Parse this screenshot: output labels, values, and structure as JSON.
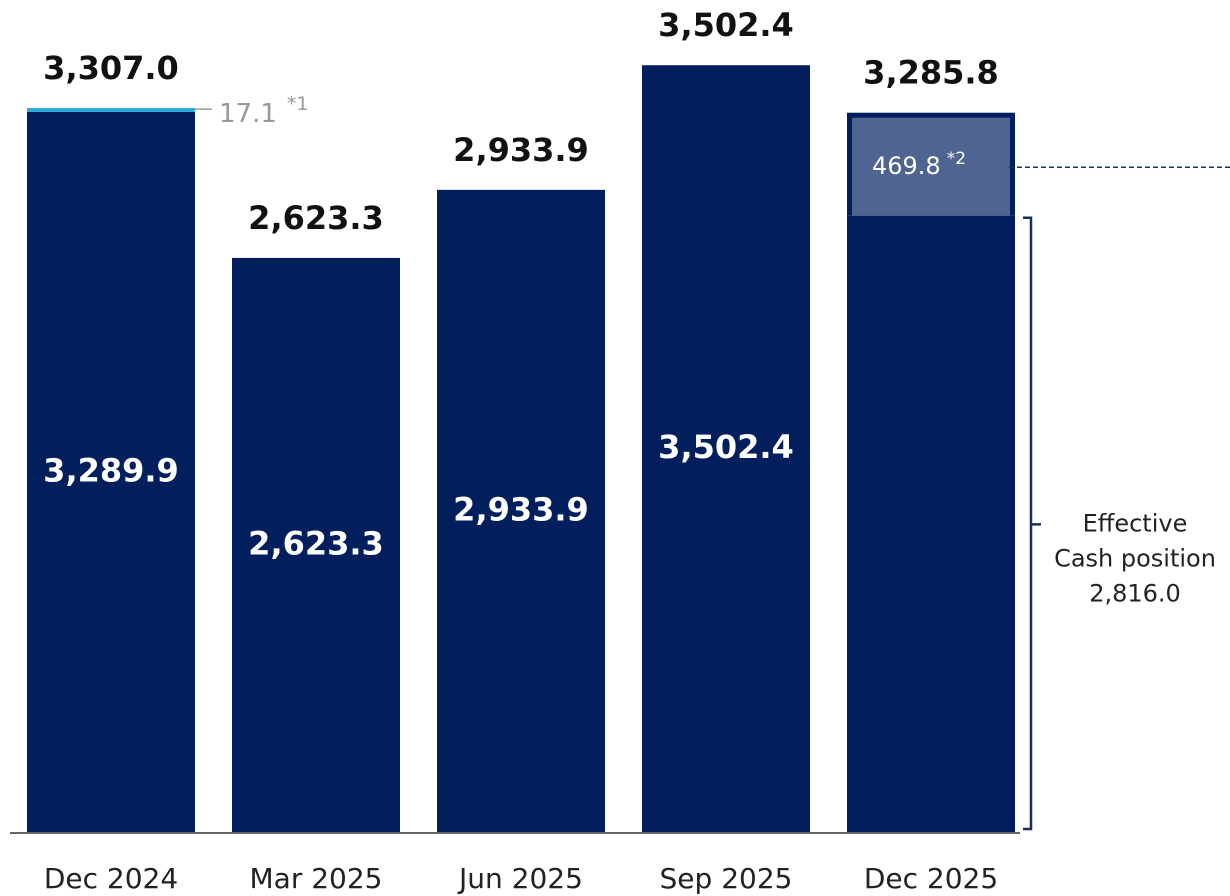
{
  "chart_data": {
    "type": "stacked-bar",
    "categories": [
      "Dec 2024",
      "Mar 2025",
      "Jun 2025",
      "Sep 2025",
      "Dec 2025"
    ],
    "series": [
      {
        "color": "#001f5c",
        "values": [
          3289.9,
          2623.3,
          2933.9,
          3502.4,
          2816.0
        ],
        "value_labels": [
          "3,289.9",
          "2,623.3",
          "2,933.9",
          "3,502.4",
          "2,816.0"
        ]
      },
      {
        "colors": [
          "#29a8e0",
          null,
          null,
          null,
          "#4f6591"
        ],
        "values": [
          17.1,
          null,
          null,
          null,
          469.8
        ],
        "value_labels": [
          "17.1",
          null,
          null,
          null,
          "469.8"
        ],
        "notes": [
          "*1",
          null,
          null,
          null,
          "*2"
        ]
      }
    ],
    "totals": {
      "values": [
        3307.0,
        2623.3,
        2933.9,
        3502.4,
        3285.8
      ],
      "value_labels": [
        "3,307.0",
        "2,623.3",
        "2,933.9",
        "3,502.4",
        "3,285.8"
      ]
    },
    "annotation": {
      "lines": [
        "Effective",
        "Cash position"
      ]
    },
    "ylim": [
      0,
      3800
    ]
  }
}
